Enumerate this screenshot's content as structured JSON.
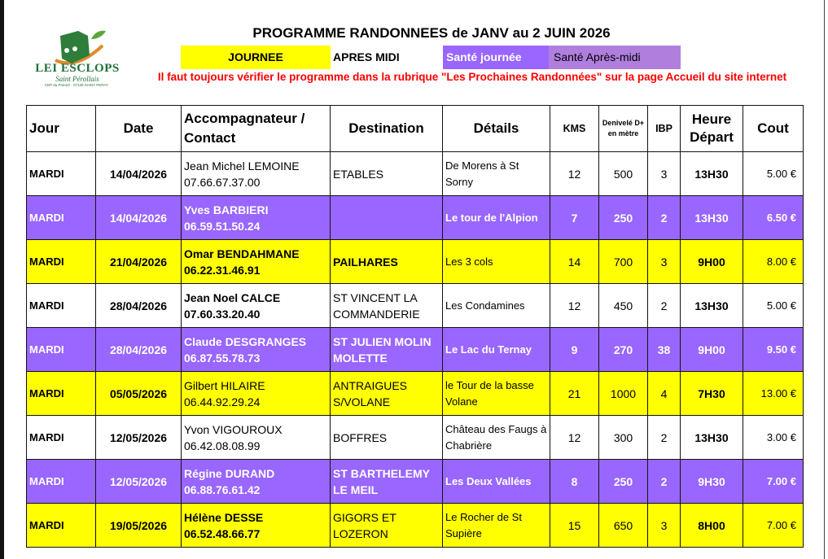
{
  "logo": {
    "name": "LEI ESCLOPS",
    "subtitle": "Saint Pérollais",
    "address": "CEP du Prieuré · 07130 SAINT PERAY"
  },
  "title": "PROGRAMME RANDONNEES de JANV au 2 JUIN 2026",
  "legend": [
    {
      "label": "JOURNEE",
      "color": "#ffff00"
    },
    {
      "label": "APRES MIDI",
      "color": "#ffffff"
    },
    {
      "label": "Santé journée",
      "color": "#9966ff"
    },
    {
      "label": "Santé Après-midi",
      "color": "#b07fde"
    }
  ],
  "warning": "Il faut toujours vérifier le programme dans la rubrique \"Les Prochaines Randonnées\" sur la page Accueil du site internet",
  "table": {
    "headers": [
      "Jour",
      "Date",
      "Accompagnateur / Contact",
      "Destination",
      "Détails",
      "KMS",
      "Denivelé D+ en mètre",
      "IBP",
      "Heure Départ",
      "Cout"
    ],
    "rows": [
      {
        "type": "apres-midi",
        "jour": "MARDI",
        "date": "14/04/2026",
        "name": "Jean Michel LEMOINE",
        "phone": "07.66.67.37.00",
        "destination": "ETABLES",
        "details": "De Morens à St Sorny",
        "kms": "12",
        "deniv": "500",
        "ibp": "3",
        "heure": "13H30",
        "cout": "5.00 €"
      },
      {
        "type": "sante-journee",
        "jour": "MARDI",
        "date": "14/04/2026",
        "name": "Yves BARBIERI",
        "phone": "06.59.51.50.24",
        "destination": "",
        "details": "Le tour de l'Alpion",
        "kms": "7",
        "deniv": "250",
        "ibp": "2",
        "heure": "13H30",
        "cout": "6.50 €"
      },
      {
        "type": "journee",
        "jour": "MARDI",
        "date": "21/04/2026",
        "name": "Omar BENDAHMANE",
        "phone": "06.22.31.46.91",
        "destination": "PAILHARES",
        "details": "Les 3 cols",
        "kms": "14",
        "deniv": "700",
        "ibp": "3",
        "heure": "9H00",
        "cout": "8.00 €"
      },
      {
        "type": "apres-midi",
        "jour": "MARDI",
        "date": "28/04/2026",
        "name": "Jean Noel CALCE",
        "phone": "07.60.33.20.40",
        "destination": "ST VINCENT LA COMMANDERIE",
        "details": "Les Condamines",
        "kms": "12",
        "deniv": "450",
        "ibp": "2",
        "heure": "13H30",
        "cout": "5.00 €"
      },
      {
        "type": "sante-journee",
        "jour": "MARDI",
        "date": "28/04/2026",
        "name": "Claude DESGRANGES",
        "phone": "06.87.55.78.73",
        "destination": "ST JULIEN MOLIN MOLETTE",
        "details": "Le Lac du Ternay",
        "kms": "9",
        "deniv": "270",
        "ibp": "38",
        "heure": "9H00",
        "cout": "9.50 €"
      },
      {
        "type": "journee",
        "jour": "MARDI",
        "date": "05/05/2026",
        "name": "Gilbert HILAIRE",
        "phone": "06.44.92.29.24",
        "destination": "ANTRAIGUES S/VOLANE",
        "details": "le Tour de la basse Volane",
        "kms": "21",
        "deniv": "1000",
        "ibp": "4",
        "heure": "7H30",
        "cout": "13.00 €"
      },
      {
        "type": "apres-midi",
        "jour": "MARDI",
        "date": "12/05/2026",
        "name": "Yvon VIGOUROUX",
        "phone": "06.42.08.08.99",
        "destination": "BOFFRES",
        "details": "Château des Faugs à Chabrière",
        "kms": "12",
        "deniv": "300",
        "ibp": "2",
        "heure": "13H30",
        "cout": "3.00 €"
      },
      {
        "type": "sante-journee",
        "jour": "MARDI",
        "date": "12/05/2026",
        "name": "Régine DURAND",
        "phone": "06.88.76.61.42",
        "destination": "ST BARTHELEMY LE MEIL",
        "details": "Les Deux Vallées",
        "kms": "8",
        "deniv": "250",
        "ibp": "2",
        "heure": "9H30",
        "cout": "7.00 €"
      },
      {
        "type": "journee",
        "jour": "MARDI",
        "date": "19/05/2026",
        "name": "Hélène DESSE",
        "phone": "06.52.48.66.77",
        "destination": "GIGORS ET LOZERON",
        "details": "Le Rocher de St Supière",
        "kms": "15",
        "deniv": "650",
        "ibp": "3",
        "heure": "8H00",
        "cout": "7.00 €"
      }
    ]
  }
}
